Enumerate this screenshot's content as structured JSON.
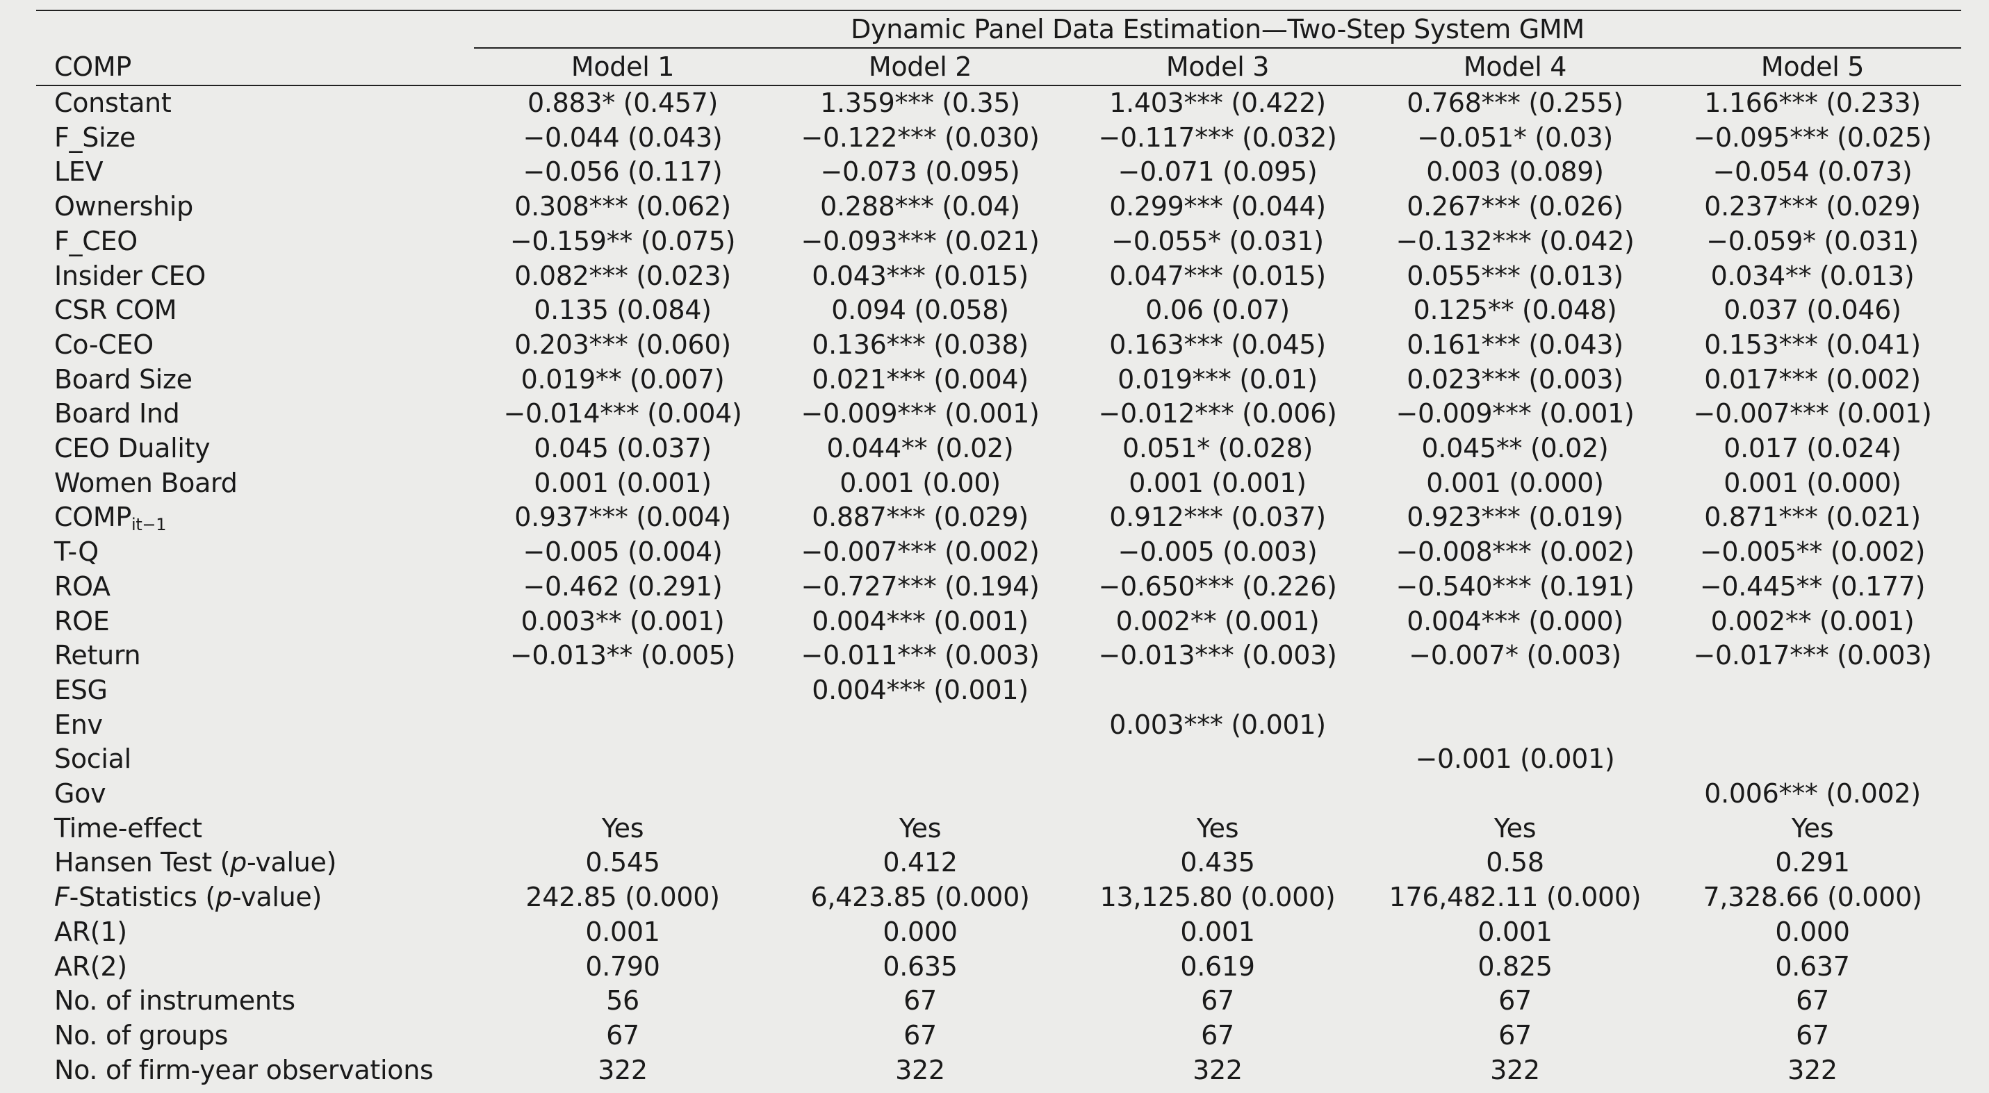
{
  "table": {
    "group_header": "Dynamic Panel Data Estimation—Two-Step System GMM",
    "dependent_label": "COMP",
    "models": [
      "Model 1",
      "Model 2",
      "Model 3",
      "Model 4",
      "Model 5"
    ],
    "rows": [
      {
        "label": "Constant",
        "values": [
          "0.883* (0.457)",
          "1.359*** (0.35)",
          "1.403*** (0.422)",
          "0.768*** (0.255)",
          "1.166*** (0.233)"
        ]
      },
      {
        "label": "F_Size",
        "values": [
          "−0.044 (0.043)",
          "−0.122*** (0.030)",
          "−0.117*** (0.032)",
          "−0.051* (0.03)",
          "−0.095*** (0.025)"
        ]
      },
      {
        "label": "LEV",
        "values": [
          "−0.056 (0.117)",
          "−0.073 (0.095)",
          "−0.071 (0.095)",
          "0.003 (0.089)",
          "−0.054 (0.073)"
        ]
      },
      {
        "label": "Ownership",
        "values": [
          "0.308*** (0.062)",
          "0.288*** (0.04)",
          "0.299*** (0.044)",
          "0.267*** (0.026)",
          "0.237*** (0.029)"
        ]
      },
      {
        "label": "F_CEO",
        "values": [
          "−0.159** (0.075)",
          "−0.093*** (0.021)",
          "−0.055* (0.031)",
          "−0.132*** (0.042)",
          "−0.059* (0.031)"
        ]
      },
      {
        "label": "Insider CEO",
        "values": [
          "0.082*** (0.023)",
          "0.043*** (0.015)",
          "0.047*** (0.015)",
          "0.055*** (0.013)",
          "0.034** (0.013)"
        ]
      },
      {
        "label": "CSR COM",
        "values": [
          "0.135 (0.084)",
          "0.094 (0.058)",
          "0.06 (0.07)",
          "0.125** (0.048)",
          "0.037 (0.046)"
        ]
      },
      {
        "label": "Co-CEO",
        "values": [
          "0.203*** (0.060)",
          "0.136*** (0.038)",
          "0.163*** (0.045)",
          "0.161*** (0.043)",
          "0.153*** (0.041)"
        ]
      },
      {
        "label": "Board Size",
        "values": [
          "0.019** (0.007)",
          "0.021*** (0.004)",
          "0.019*** (0.01)",
          "0.023*** (0.003)",
          "0.017*** (0.002)"
        ]
      },
      {
        "label": "Board Ind",
        "values": [
          "−0.014*** (0.004)",
          "−0.009*** (0.001)",
          "−0.012*** (0.006)",
          "−0.009*** (0.001)",
          "−0.007*** (0.001)"
        ]
      },
      {
        "label": "CEO Duality",
        "values": [
          "0.045 (0.037)",
          "0.044** (0.02)",
          "0.051* (0.028)",
          "0.045** (0.02)",
          "0.017 (0.024)"
        ]
      },
      {
        "label": "Women Board",
        "values": [
          "0.001 (0.001)",
          "0.001 (0.00)",
          "0.001 (0.001)",
          "0.001 (0.000)",
          "0.001 (0.000)"
        ]
      },
      {
        "label": "COMP",
        "label_sub": "it−1",
        "values": [
          "0.937*** (0.004)",
          "0.887*** (0.029)",
          "0.912*** (0.037)",
          "0.923*** (0.019)",
          "0.871*** (0.021)"
        ]
      },
      {
        "label": "T-Q",
        "values": [
          "−0.005 (0.004)",
          "−0.007*** (0.002)",
          "−0.005 (0.003)",
          "−0.008*** (0.002)",
          "−0.005** (0.002)"
        ]
      },
      {
        "label": "ROA",
        "values": [
          "−0.462 (0.291)",
          "−0.727*** (0.194)",
          "−0.650*** (0.226)",
          "−0.540*** (0.191)",
          "−0.445** (0.177)"
        ]
      },
      {
        "label": "ROE",
        "values": [
          "0.003** (0.001)",
          "0.004*** (0.001)",
          "0.002** (0.001)",
          "0.004*** (0.000)",
          "0.002** (0.001)"
        ]
      },
      {
        "label": "Return",
        "values": [
          "−0.013** (0.005)",
          "−0.011*** (0.003)",
          "−0.013*** (0.003)",
          "−0.007* (0.003)",
          "−0.017*** (0.003)"
        ]
      },
      {
        "label": "ESG",
        "values": [
          "",
          "0.004*** (0.001)",
          "",
          "",
          ""
        ]
      },
      {
        "label": "Env",
        "values": [
          "",
          "",
          "0.003*** (0.001)",
          "",
          ""
        ]
      },
      {
        "label": "Social",
        "values": [
          "",
          "",
          "",
          "−0.001 (0.001)",
          ""
        ]
      },
      {
        "label": "Gov",
        "values": [
          "",
          "",
          "",
          "",
          "0.006*** (0.002)"
        ]
      },
      {
        "label": "Time-effect",
        "values": [
          "Yes",
          "Yes",
          "Yes",
          "Yes",
          "Yes"
        ]
      },
      {
        "label": "Hansen Test (",
        "label_ital": "p",
        "label_after": "-value)",
        "values": [
          "0.545",
          "0.412",
          "0.435",
          "0.58",
          "0.291"
        ]
      },
      {
        "label_pre_ital": "F",
        "label": "-Statistics (",
        "label_ital": "p",
        "label_after": "-value)",
        "values": [
          "242.85 (0.000)",
          "6,423.85 (0.000)",
          "13,125.80 (0.000)",
          "176,482.11 (0.000)",
          "7,328.66 (0.000)"
        ]
      },
      {
        "label": "AR(1)",
        "values": [
          "0.001",
          "0.000",
          "0.001",
          "0.001",
          "0.000"
        ]
      },
      {
        "label": "AR(2)",
        "values": [
          "0.790",
          "0.635",
          "0.619",
          "0.825",
          "0.637"
        ]
      },
      {
        "label": "No. of instruments",
        "values": [
          "56",
          "67",
          "67",
          "67",
          "67"
        ]
      },
      {
        "label": "No. of groups",
        "values": [
          "67",
          "67",
          "67",
          "67",
          "67"
        ]
      },
      {
        "label": "No. of firm-year observations",
        "values": [
          "322",
          "322",
          "322",
          "322",
          "322"
        ]
      }
    ]
  }
}
